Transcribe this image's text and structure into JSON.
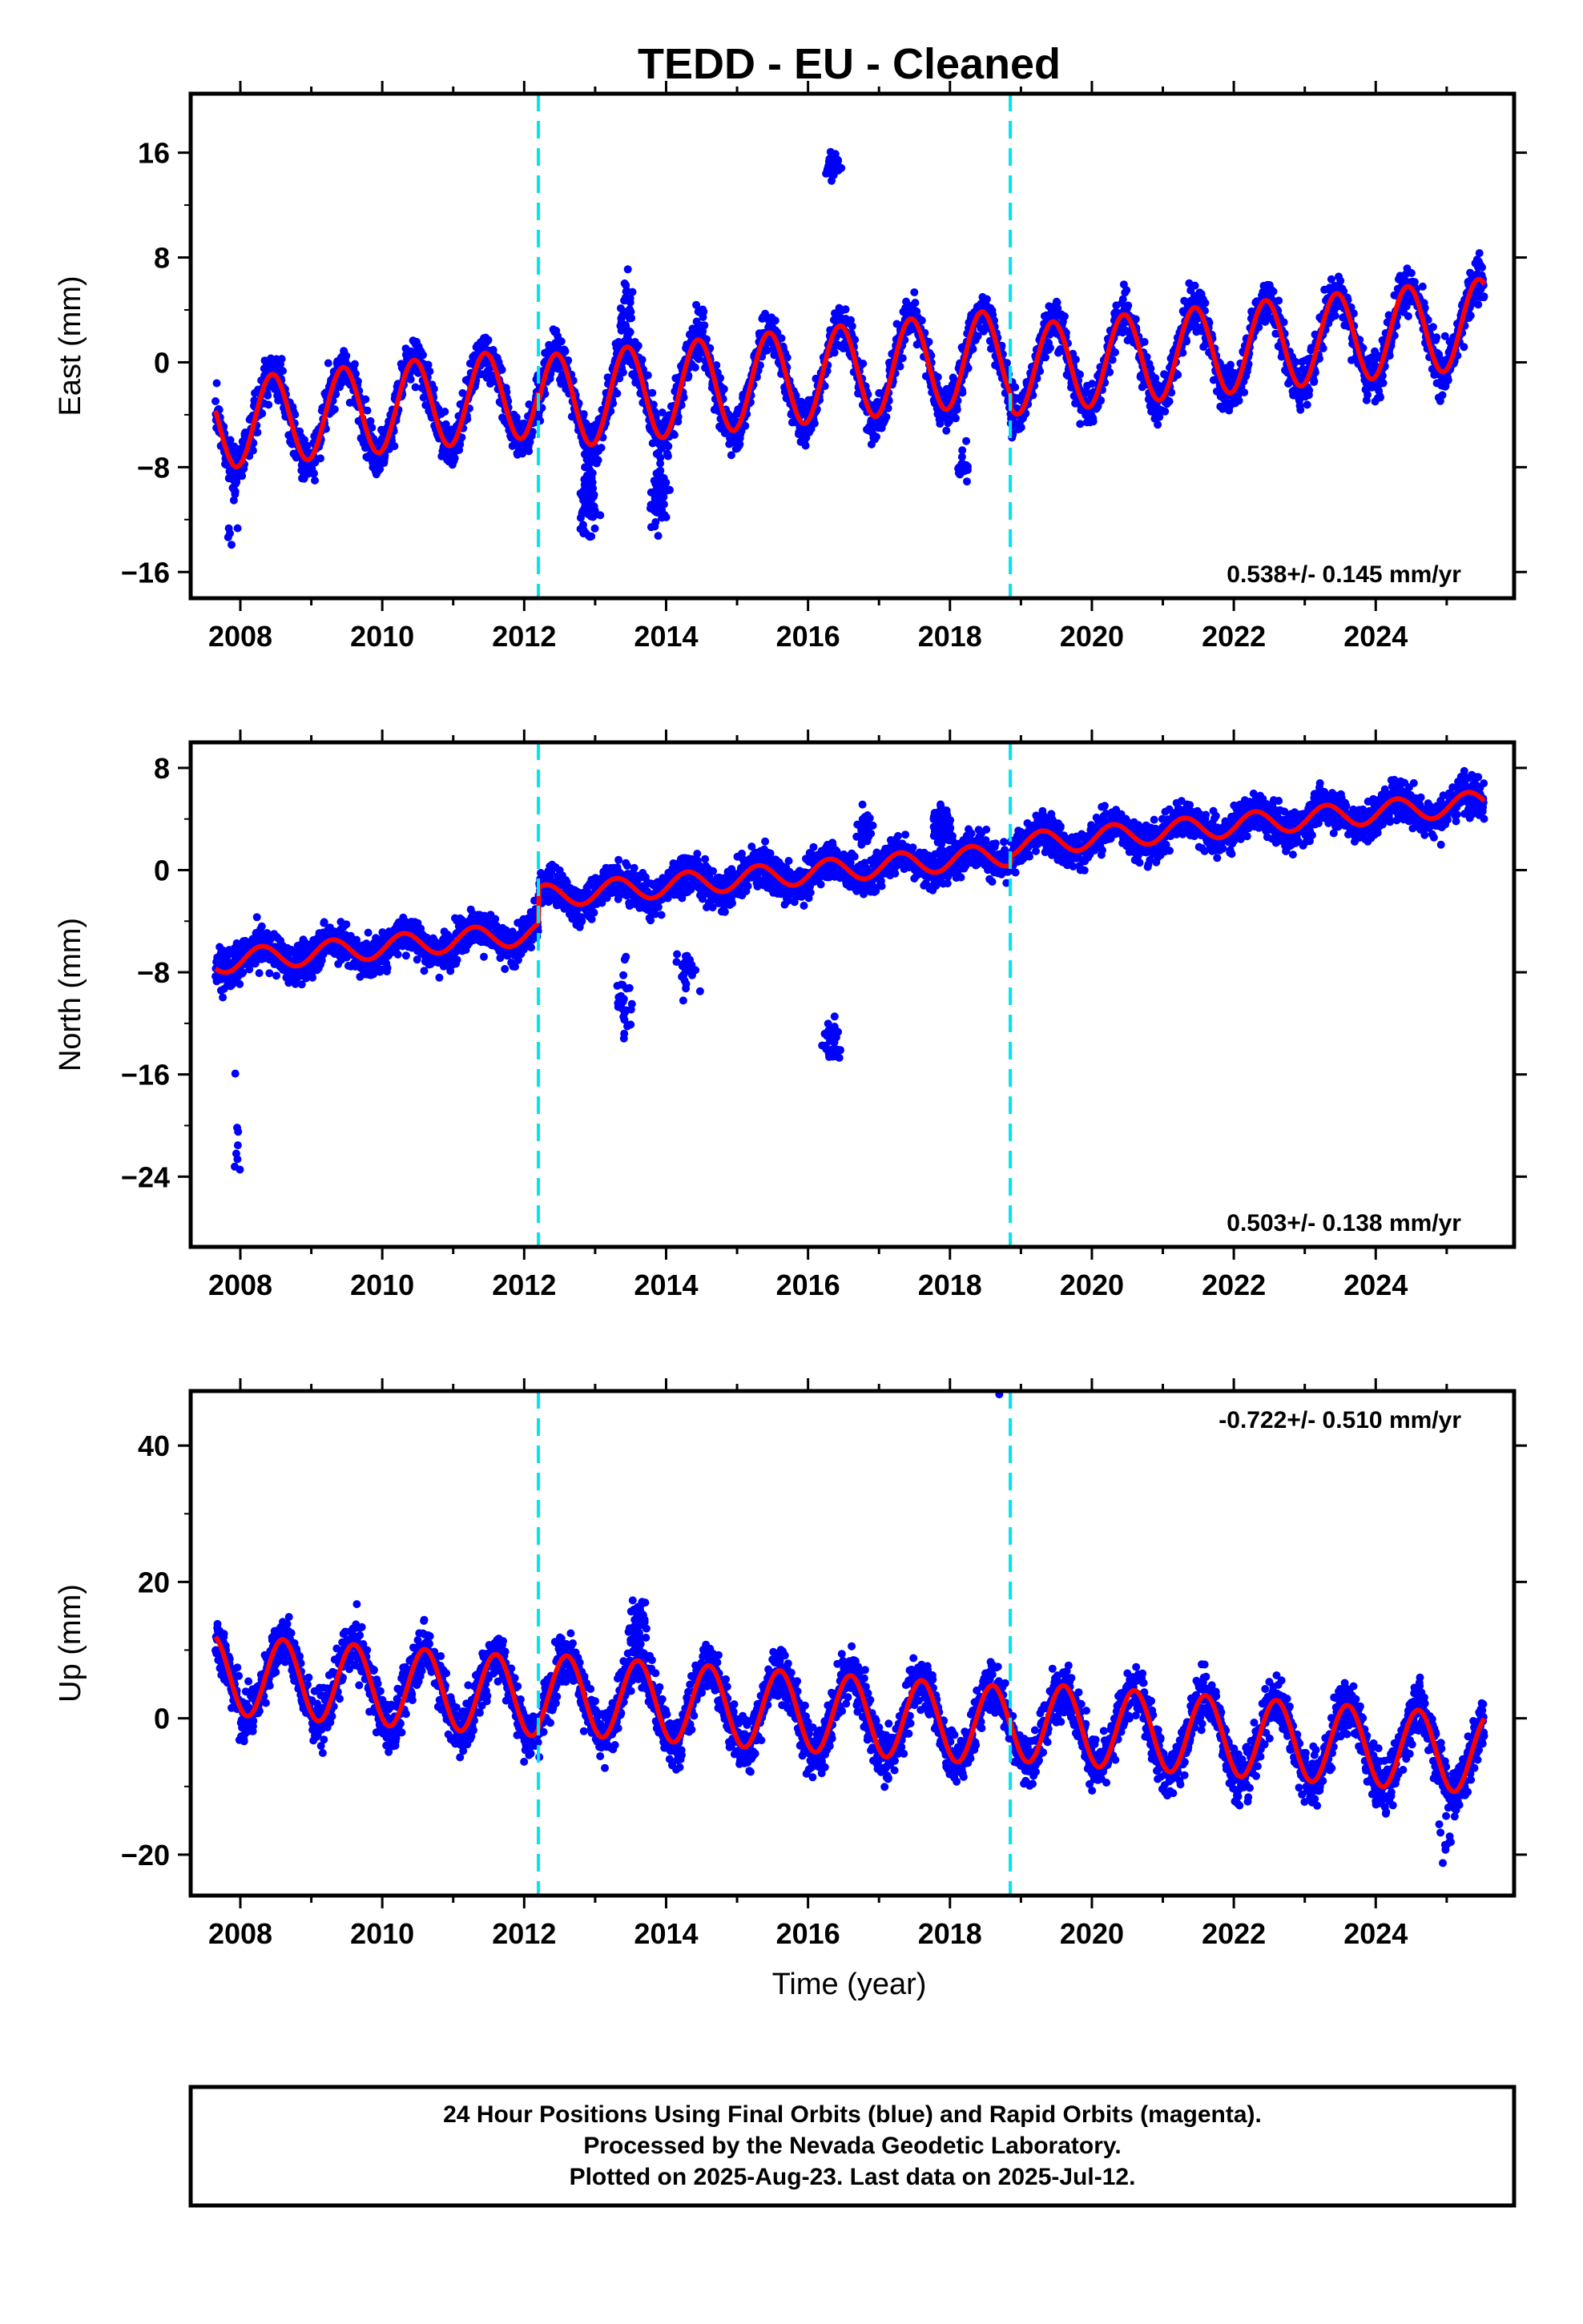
{
  "title": "TEDD  - EU - Cleaned",
  "xlabel": "Time (year)",
  "footer": {
    "line1": "24 Hour Positions Using Final Orbits (blue) and Rapid Orbits (magenta).",
    "line2": "Processed by the Nevada Geodetic Laboratory.",
    "line3": "Plotted on 2025-Aug-23. Last data on 2025-Jul-12."
  },
  "colors": {
    "points": "#0000ff",
    "fit": "#ff0000",
    "steps": "#00e5ee",
    "frame": "#000000"
  },
  "chart_data": [
    {
      "type": "scatter",
      "panel": "east",
      "ylabel": "East (mm)",
      "rate_label": "0.538+/- 0.145 mm/yr",
      "rate_position": "bottom-right",
      "xlim": [
        2007.3,
        2025.95
      ],
      "ylim": [
        -18,
        20.5
      ],
      "yticks": [
        16,
        8,
        0,
        -8,
        -16
      ],
      "xticks": [
        2008,
        2010,
        2012,
        2014,
        2016,
        2018,
        2020,
        2022,
        2024
      ],
      "step_lines": [
        2012.2,
        2018.85
      ],
      "data_start": 2007.65,
      "data_end": 2025.53,
      "model": {
        "segments": [
          {
            "start": 2007.65,
            "end": 2012.2,
            "a": -2.4,
            "rate": 0.538,
            "amp": 3.4,
            "peak": 0.45
          },
          {
            "start": 2012.2,
            "end": 2018.85,
            "a": -3.2,
            "rate": 0.538,
            "amp": 3.6,
            "peak": 0.45
          },
          {
            "start": 2018.85,
            "end": 2025.53,
            "a": -4.3,
            "rate": 0.538,
            "amp": 3.4,
            "peak": 0.45
          }
        ],
        "noise": 1.6
      },
      "outlier_clusters": [
        {
          "x": 2016.35,
          "y": 15.0,
          "n": 40,
          "spread": 1.6
        },
        {
          "x": 2012.9,
          "y": -10.5,
          "n": 90,
          "spread": 3.5
        },
        {
          "x": 2013.9,
          "y": -10.0,
          "n": 90,
          "spread": 3.5
        },
        {
          "x": 2013.45,
          "y": 4.0,
          "n": 30,
          "spread": 4.0
        },
        {
          "x": 2014.45,
          "y": 3.0,
          "n": 12,
          "spread": 3.0
        },
        {
          "x": 2018.2,
          "y": -8.0,
          "n": 18,
          "spread": 2.5
        },
        {
          "x": 2007.9,
          "y": -12.0,
          "n": 6,
          "spread": 3.0
        }
      ]
    },
    {
      "type": "scatter",
      "panel": "north",
      "ylabel": "North (mm)",
      "rate_label": "0.503+/- 0.138 mm/yr",
      "rate_position": "bottom-right",
      "xlim": [
        2007.3,
        2025.95
      ],
      "ylim": [
        -29.5,
        10
      ],
      "yticks": [
        8,
        0,
        -8,
        -16,
        -24
      ],
      "xticks": [
        2008,
        2010,
        2012,
        2014,
        2016,
        2018,
        2020,
        2022,
        2024
      ],
      "step_lines": [
        2012.2,
        2018.85
      ],
      "data_start": 2007.65,
      "data_end": 2025.53,
      "model": {
        "segments": [
          {
            "start": 2007.65,
            "end": 2012.2,
            "a": -5.0,
            "rate": 0.503,
            "amp": 0.9,
            "peak": 0.3
          },
          {
            "start": 2012.2,
            "end": 2018.85,
            "a": -2.2,
            "rate": 0.503,
            "amp": 0.9,
            "peak": 0.3
          },
          {
            "start": 2018.85,
            "end": 2025.53,
            "a": -1.5,
            "rate": 0.503,
            "amp": 0.9,
            "peak": 0.3
          }
        ],
        "noise": 1.4
      },
      "outlier_clusters": [
        {
          "x": 2016.35,
          "y": -13.5,
          "n": 40,
          "spread": 3.0
        },
        {
          "x": 2007.95,
          "y": -22.0,
          "n": 8,
          "spread": 6.0
        },
        {
          "x": 2013.4,
          "y": -11.0,
          "n": 25,
          "spread": 4.5
        },
        {
          "x": 2014.3,
          "y": -8.0,
          "n": 25,
          "spread": 3.0
        },
        {
          "x": 2017.9,
          "y": 3.5,
          "n": 120,
          "spread": 2.2
        },
        {
          "x": 2016.8,
          "y": 3.2,
          "n": 50,
          "spread": 1.8
        }
      ]
    },
    {
      "type": "scatter",
      "panel": "up",
      "ylabel": "Up (mm)",
      "rate_label": "-0.722+/- 0.510 mm/yr",
      "rate_position": "top-right",
      "xlim": [
        2007.3,
        2025.95
      ],
      "ylim": [
        -26,
        48
      ],
      "yticks": [
        40,
        20,
        0,
        -20
      ],
      "xticks": [
        2008,
        2010,
        2012,
        2014,
        2016,
        2018,
        2020,
        2022,
        2024
      ],
      "step_lines": [
        2012.2,
        2018.85
      ],
      "data_start": 2007.65,
      "data_end": 2025.53,
      "model": {
        "segments": [
          {
            "start": 2007.65,
            "end": 2012.2,
            "a": 3.3,
            "rate": -0.722,
            "amp": 5.8,
            "peak": 0.6
          },
          {
            "start": 2012.2,
            "end": 2018.85,
            "a": 3.8,
            "rate": -0.722,
            "amp": 5.8,
            "peak": 0.6
          },
          {
            "start": 2018.85,
            "end": 2025.53,
            "a": 4.5,
            "rate": -0.722,
            "amp": 5.8,
            "peak": 0.6
          }
        ],
        "noise": 3.6
      },
      "outlier_clusters": [
        {
          "x": 2018.7,
          "y": 47.5,
          "n": 1,
          "spread": 0.2
        },
        {
          "x": 2013.6,
          "y": 14.0,
          "n": 40,
          "spread": 5.0
        },
        {
          "x": 2025.0,
          "y": -18.0,
          "n": 10,
          "spread": 4.0
        }
      ]
    }
  ]
}
